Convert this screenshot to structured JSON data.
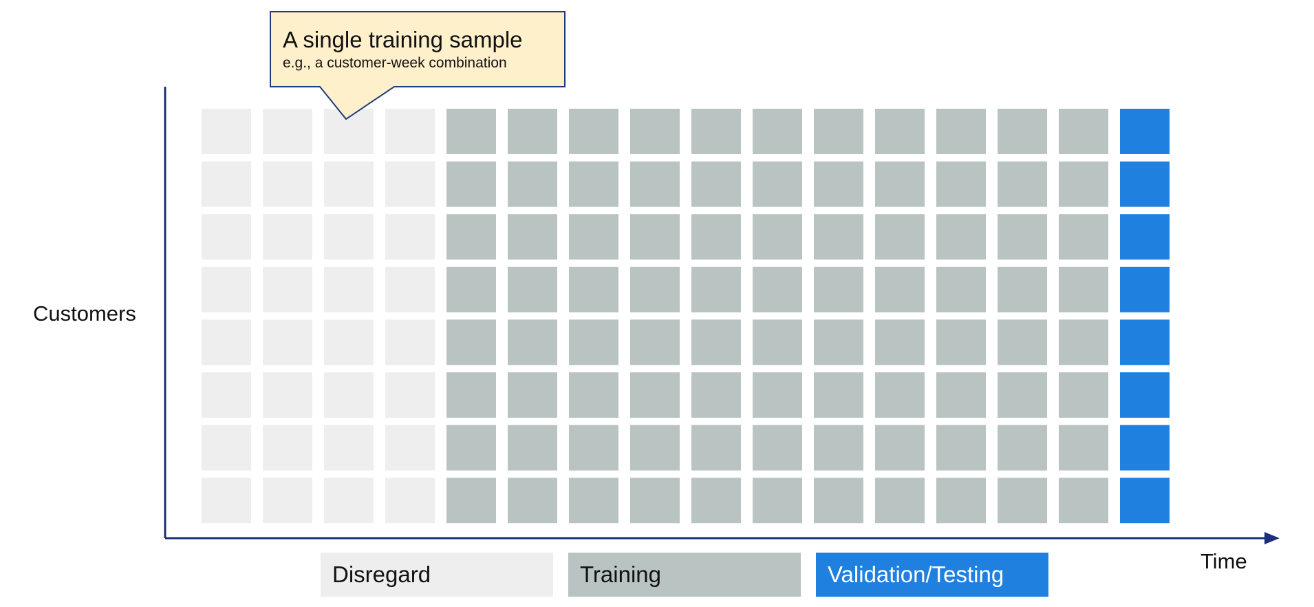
{
  "y_axis_label": "Customers",
  "x_axis_label": "Time",
  "callout": {
    "title": "A single training sample",
    "subtitle": "e.g., a customer-week combination",
    "fill": "#FFF0CC",
    "stroke": "#1F3A7A"
  },
  "grid": {
    "rows": 8,
    "columns": 16,
    "column_groups": [
      "Disregard",
      "Disregard",
      "Disregard",
      "Disregard",
      "Training",
      "Training",
      "Training",
      "Training",
      "Training",
      "Training",
      "Training",
      "Training",
      "Training",
      "Training",
      "Training",
      "Validation/Testing"
    ]
  },
  "legend": [
    {
      "key": "disregard",
      "label": "Disregard",
      "color": "#EEEEEE"
    },
    {
      "key": "training",
      "label": "Training",
      "color": "#B8C3C2"
    },
    {
      "key": "validation",
      "label": "Validation/Testing",
      "color": "#1F80E0"
    }
  ],
  "colors": {
    "axis": "#1B2F7A"
  }
}
